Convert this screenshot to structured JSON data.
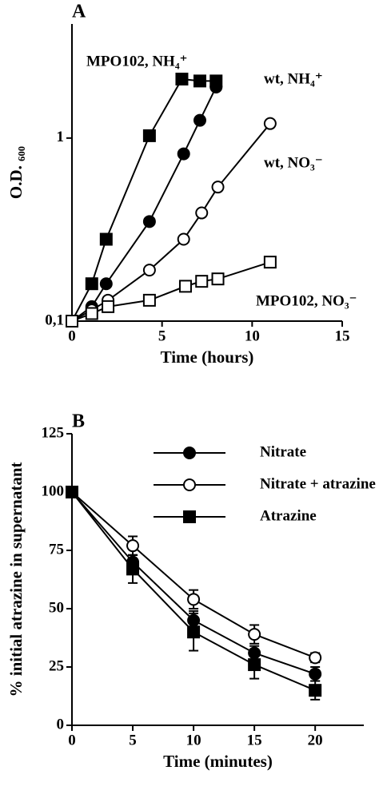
{
  "chart_data": [
    {
      "type": "line",
      "panel_label": "A",
      "ylabel": "O.D. ₆₀₀",
      "xlabel": "Time (hours)",
      "ylog": true,
      "xlim": [
        0,
        15
      ],
      "xticks": [
        0,
        5,
        10,
        15
      ],
      "ylim": [
        0.1,
        4.2
      ],
      "yticks": [
        {
          "value": 0.1,
          "label": "0,1"
        },
        1
      ],
      "series": [
        {
          "name": "MPO102, NH₄⁺",
          "color": "#000000",
          "marker": "square",
          "filled": true,
          "x": [
            0,
            1.1,
            1.9,
            4.3,
            6.1,
            7.1,
            8
          ],
          "values": [
            0.1,
            0.16,
            0.28,
            1.03,
            2.1,
            2.05,
            2.05
          ]
        },
        {
          "name": "wt, NH₄⁺",
          "color": "#000000",
          "marker": "circle",
          "filled": true,
          "x": [
            0,
            1.1,
            1.9,
            4.3,
            6.2,
            7.1,
            8
          ],
          "values": [
            0.1,
            0.12,
            0.16,
            0.35,
            0.82,
            1.25,
            1.9
          ]
        },
        {
          "name": "wt, NO₃⁻",
          "color": "#000000",
          "marker": "circle",
          "filled": false,
          "x": [
            0,
            1.1,
            2,
            4.3,
            6.2,
            7.2,
            8.1,
            11
          ],
          "values": [
            0.1,
            0.115,
            0.13,
            0.19,
            0.28,
            0.39,
            0.54,
            1.2
          ]
        },
        {
          "name": "MPO102, NO₃⁻",
          "color": "#000000",
          "marker": "square",
          "filled": false,
          "x": [
            0,
            1.1,
            2,
            4.3,
            6.3,
            7.2,
            8.1,
            11
          ],
          "values": [
            0.1,
            0.11,
            0.12,
            0.13,
            0.155,
            0.165,
            0.17,
            0.21
          ]
        }
      ]
    },
    {
      "type": "line",
      "panel_label": "B",
      "ylabel": "% initial atrazine in supernatant",
      "xlabel": "Time (minutes)",
      "xlim": [
        0,
        24
      ],
      "xticks": [
        0,
        5,
        10,
        15,
        20
      ],
      "ylim": [
        0,
        125
      ],
      "yticks": [
        0,
        25,
        50,
        75,
        100,
        125
      ],
      "legend": "top-right",
      "x": [
        0,
        5,
        10,
        15,
        20
      ],
      "series": [
        {
          "name": "Nitrate",
          "color": "#000000",
          "marker": "circle",
          "filled": true,
          "values": [
            100,
            70,
            45,
            31,
            22
          ],
          "errors": [
            null,
            3,
            4,
            3,
            3
          ]
        },
        {
          "name": "Nitrate + atrazine",
          "color": "#000000",
          "marker": "circle",
          "filled": false,
          "values": [
            100,
            77,
            54,
            39,
            29
          ],
          "errors": [
            null,
            4,
            4,
            4,
            2
          ]
        },
        {
          "name": "Atrazine",
          "color": "#000000",
          "marker": "square",
          "filled": true,
          "values": [
            100,
            67,
            40,
            26,
            15
          ],
          "errors": [
            null,
            6,
            8,
            6,
            4
          ]
        }
      ]
    }
  ]
}
